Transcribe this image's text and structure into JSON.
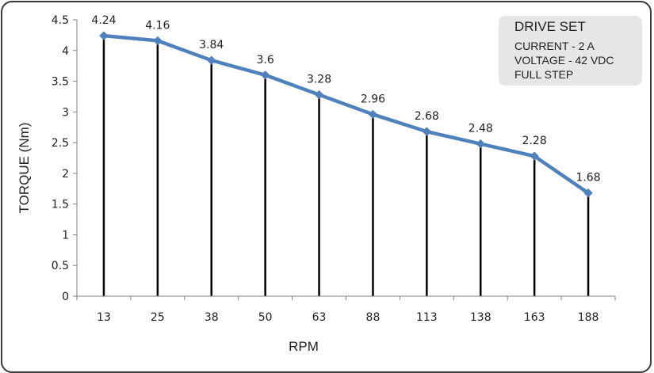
{
  "chart_data": {
    "type": "line",
    "categories": [
      "13",
      "25",
      "38",
      "50",
      "63",
      "88",
      "113",
      "138",
      "163",
      "188"
    ],
    "series": [
      {
        "values": [
          4.24,
          4.16,
          3.84,
          3.6,
          3.28,
          2.96,
          2.68,
          2.48,
          2.28,
          1.68
        ]
      }
    ],
    "data_labels": [
      "4.24",
      "4.16",
      "3.84",
      "3.6",
      "3.28",
      "2.96",
      "2.68",
      "2.48",
      "2.28",
      "1.68"
    ],
    "title": "",
    "xlabel": "RPM",
    "ylabel": "TORQUE (Nm)",
    "ylim": [
      0,
      4.5
    ],
    "yticks": [
      "0",
      "0.5",
      "1",
      "1.5",
      "2",
      "2.5",
      "3",
      "3.5",
      "4",
      "4.5"
    ],
    "drop_lines": true,
    "grid": false,
    "line_color": "#4f81bd",
    "drop_line_color": "#000000",
    "legend_placement": "top-right"
  },
  "annotation": {
    "title": "DRIVE SET",
    "lines": [
      "CURRENT - 2 A",
      "VOLTAGE - 42 VDC",
      "FULL STEP"
    ]
  }
}
